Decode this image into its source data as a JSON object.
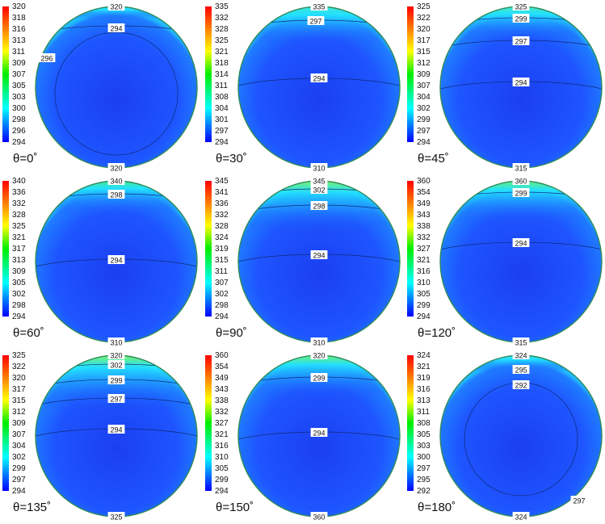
{
  "panels": [
    {
      "theta": "θ=0˚",
      "legend": [
        "320",
        "318",
        "316",
        "313",
        "311",
        "309",
        "307",
        "305",
        "303",
        "300",
        "298",
        "296",
        "294"
      ],
      "labels": [
        "320",
        "294",
        "296",
        "320"
      ],
      "top": "320",
      "bottom": "320",
      "hot": {
        "color": "#22d0ff",
        "extent": 0.03
      }
    },
    {
      "theta": "θ=30˚",
      "legend": [
        "335",
        "332",
        "328",
        "325",
        "321",
        "318",
        "314",
        "311",
        "308",
        "304",
        "301",
        "297",
        "294"
      ],
      "labels": [
        "335",
        "297",
        "294",
        "310"
      ],
      "top": "335",
      "bottom": "310",
      "hot": {
        "color": "#3fe3d2",
        "extent": 0.09
      }
    },
    {
      "theta": "θ=45˚",
      "legend": [
        "325",
        "322",
        "320",
        "317",
        "315",
        "312",
        "309",
        "307",
        "304",
        "302",
        "299",
        "297",
        "294"
      ],
      "labels": [
        "325",
        "299",
        "297",
        "294",
        "315"
      ],
      "top": "325",
      "bottom": "315",
      "hot": {
        "color": "#49e6b8",
        "extent": 0.08
      }
    },
    {
      "theta": "θ=60˚",
      "legend": [
        "340",
        "336",
        "332",
        "328",
        "325",
        "321",
        "317",
        "313",
        "309",
        "305",
        "302",
        "298",
        "294"
      ],
      "labels": [
        "340",
        "298",
        "294",
        "310"
      ],
      "top": "340",
      "bottom": "310",
      "hot": {
        "color": "#45e48a",
        "extent": 0.08
      }
    },
    {
      "theta": "θ=90˚",
      "legend": [
        "345",
        "341",
        "336",
        "332",
        "328",
        "324",
        "319",
        "315",
        "311",
        "307",
        "302",
        "298",
        "294"
      ],
      "labels": [
        "345",
        "302",
        "298",
        "294",
        "310"
      ],
      "top": "345",
      "bottom": "310",
      "hot": {
        "color": "#7af06a",
        "extent": 0.12
      }
    },
    {
      "theta": "θ=120˚",
      "legend": [
        "360",
        "354",
        "349",
        "343",
        "338",
        "332",
        "327",
        "321",
        "316",
        "310",
        "305",
        "299",
        "294"
      ],
      "labels": [
        "360",
        "299",
        "294",
        "315"
      ],
      "top": "360",
      "bottom": "315",
      "hot": {
        "color": "#68ee7a",
        "extent": 0.1
      }
    },
    {
      "theta": "θ=135˚",
      "legend": [
        "325",
        "322",
        "320",
        "317",
        "315",
        "312",
        "309",
        "307",
        "304",
        "302",
        "299",
        "297",
        "294"
      ],
      "labels": [
        "320",
        "302",
        "299",
        "297",
        "294",
        "325"
      ],
      "top": "320",
      "bottom": "325",
      "hot": {
        "color": "#7af06a",
        "extent": 0.13
      }
    },
    {
      "theta": "θ=150˚",
      "legend": [
        "360",
        "354",
        "349",
        "343",
        "338",
        "332",
        "327",
        "321",
        "316",
        "310",
        "305",
        "299",
        "294"
      ],
      "labels": [
        "320",
        "299",
        "294",
        "360"
      ],
      "top": "320",
      "bottom": "360",
      "hot": {
        "color": "#6eef70",
        "extent": 0.1
      }
    },
    {
      "theta": "θ=180˚",
      "legend": [
        "324",
        "321",
        "319",
        "316",
        "313",
        "311",
        "308",
        "305",
        "303",
        "300",
        "297",
        "295",
        "292"
      ],
      "labels": [
        "324",
        "295",
        "292",
        "297",
        "324"
      ],
      "top": "324",
      "bottom": "324",
      "hot": {
        "color": "#2ed6f0",
        "extent": 0.04
      }
    }
  ],
  "colors": {
    "colorbar_top": "#ff0000",
    "colorbar_mid": "#00ee00",
    "colorbar_cyan": "#00ffff",
    "colorbar_bottom": "#0000ff",
    "disk_core": "#1b3ff0",
    "disk_field": "#1e55ff",
    "disk_edge": "#22bcff",
    "rim": "#2e8a5a"
  }
}
